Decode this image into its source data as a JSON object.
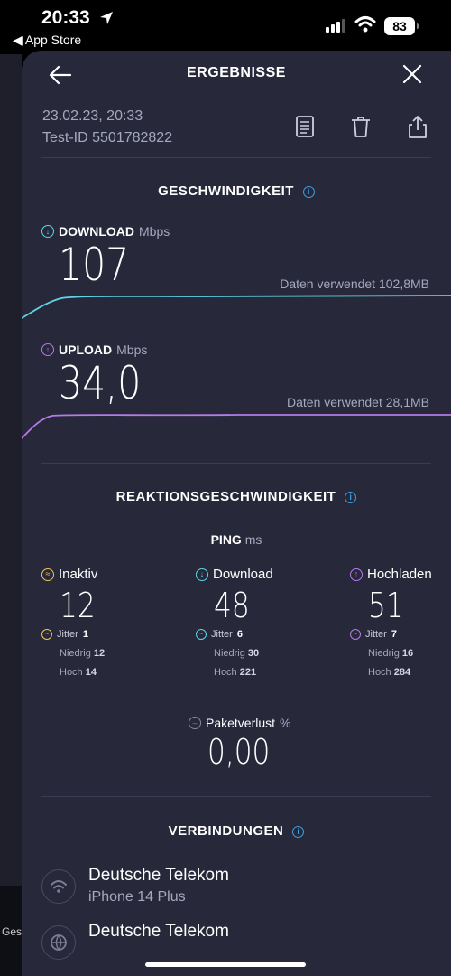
{
  "status_bar": {
    "time": "20:33",
    "back_app": "◀ App Store",
    "battery": "83"
  },
  "underlay": {
    "text": "Ges"
  },
  "header": {
    "title": "ERGEBNISSE",
    "back_icon": "arrow-left-icon",
    "close_icon": "close-icon"
  },
  "meta": {
    "date": "23.02.23, 20:33",
    "test_id": "Test-ID 5501782822"
  },
  "speed": {
    "title": "GESCHWINDIGKEIT",
    "download": {
      "label": "DOWNLOAD",
      "unit": "Mbps",
      "value": "107",
      "data_used": "Daten verwendet 102,8MB",
      "color": "#5ed4e6"
    },
    "upload": {
      "label": "UPLOAD",
      "unit": "Mbps",
      "value": "34,0",
      "data_used": "Daten verwendet 28,1MB",
      "color": "#b57be8"
    }
  },
  "responsiveness": {
    "title": "REAKTIONSGESCHWINDIGKEIT",
    "ping_label": "PING",
    "ping_unit": "ms",
    "columns": [
      {
        "label": "Inaktiv",
        "value": "12",
        "jitter_label": "Jitter",
        "jitter": "1",
        "low_label": "Niedrig",
        "low": "12",
        "high_label": "Hoch",
        "high": "14",
        "color": "#f0c64a"
      },
      {
        "label": "Download",
        "value": "48",
        "jitter_label": "Jitter",
        "jitter": "6",
        "low_label": "Niedrig",
        "low": "30",
        "high_label": "Hoch",
        "high": "221",
        "color": "#5ed4e6"
      },
      {
        "label": "Hochladen",
        "value": "51",
        "jitter_label": "Jitter",
        "jitter": "7",
        "low_label": "Niedrig",
        "low": "16",
        "high_label": "Hoch",
        "high": "284",
        "color": "#b57be8"
      }
    ],
    "packet_loss_label": "Paketverlust",
    "packet_loss_unit": "%",
    "packet_loss_value": "0,00"
  },
  "connections": {
    "title": "VERBINDUNGEN",
    "items": [
      {
        "name": "Deutsche Telekom",
        "device": "iPhone 14 Plus",
        "icon": "wifi-icon"
      },
      {
        "name": "Deutsche Telekom",
        "device": "",
        "icon": "globe-icon"
      }
    ]
  }
}
